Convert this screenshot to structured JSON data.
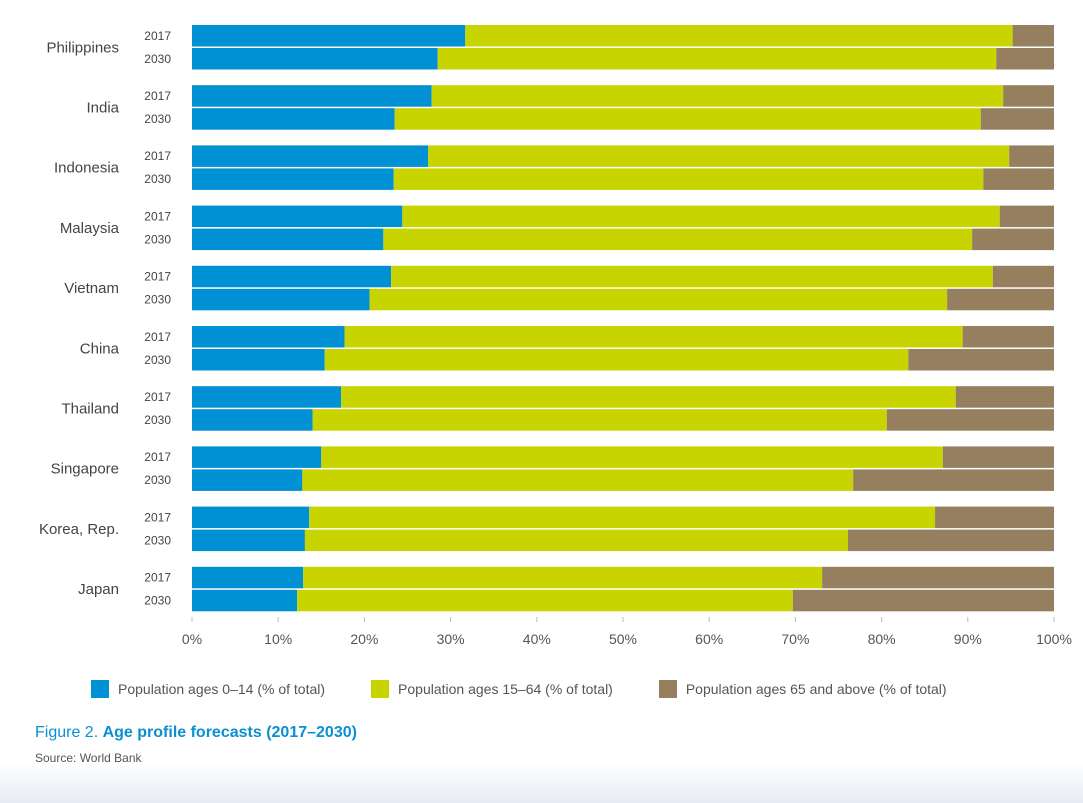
{
  "chart_data": {
    "type": "bar",
    "orientation": "horizontal",
    "stacked": true,
    "categories": [
      "Philippines",
      "India",
      "Indonesia",
      "Malaysia",
      "Vietnam",
      "China",
      "Thailand",
      "Singapore",
      "Korea, Rep.",
      "Japan"
    ],
    "years": [
      "2017",
      "2030"
    ],
    "series": [
      {
        "name": "Population ages 0–14 (% of total)",
        "color": "#0090d4",
        "values": [
          [
            31.7,
            28.5
          ],
          [
            27.8,
            23.5
          ],
          [
            27.4,
            23.4
          ],
          [
            24.4,
            22.2
          ],
          [
            23.1,
            20.6
          ],
          [
            17.7,
            15.4
          ],
          [
            17.3,
            14.0
          ],
          [
            15.0,
            12.8
          ],
          [
            13.6,
            13.1
          ],
          [
            12.9,
            12.2
          ]
        ]
      },
      {
        "name": "Population ages 15–64 (% of total)",
        "color": "#c8d400",
        "values": [
          [
            63.5,
            64.8
          ],
          [
            66.3,
            68.0
          ],
          [
            67.4,
            68.4
          ],
          [
            69.3,
            68.3
          ],
          [
            69.8,
            67.0
          ],
          [
            71.7,
            67.7
          ],
          [
            71.3,
            66.6
          ],
          [
            72.1,
            63.9
          ],
          [
            72.6,
            63.0
          ],
          [
            60.2,
            57.5
          ]
        ]
      },
      {
        "name": "Population ages 65 and above (% of total)",
        "color": "#967f5f",
        "values": [
          [
            4.8,
            6.7
          ],
          [
            5.9,
            8.5
          ],
          [
            5.2,
            8.2
          ],
          [
            6.3,
            9.5
          ],
          [
            7.1,
            12.4
          ],
          [
            10.6,
            16.9
          ],
          [
            11.4,
            19.4
          ],
          [
            12.9,
            23.3
          ],
          [
            13.8,
            23.9
          ],
          [
            26.9,
            30.3
          ]
        ]
      }
    ],
    "xlim": [
      0,
      100
    ],
    "xticks": [
      "0%",
      "10%",
      "20%",
      "30%",
      "40%",
      "50%",
      "60%",
      "70%",
      "80%",
      "90%",
      "100%"
    ],
    "legend_position": "bottom",
    "grid": false
  },
  "caption": {
    "prefix": "Figure 2.",
    "title": "Age profile forecasts (2017–2030)"
  },
  "source": "Source: World Bank"
}
